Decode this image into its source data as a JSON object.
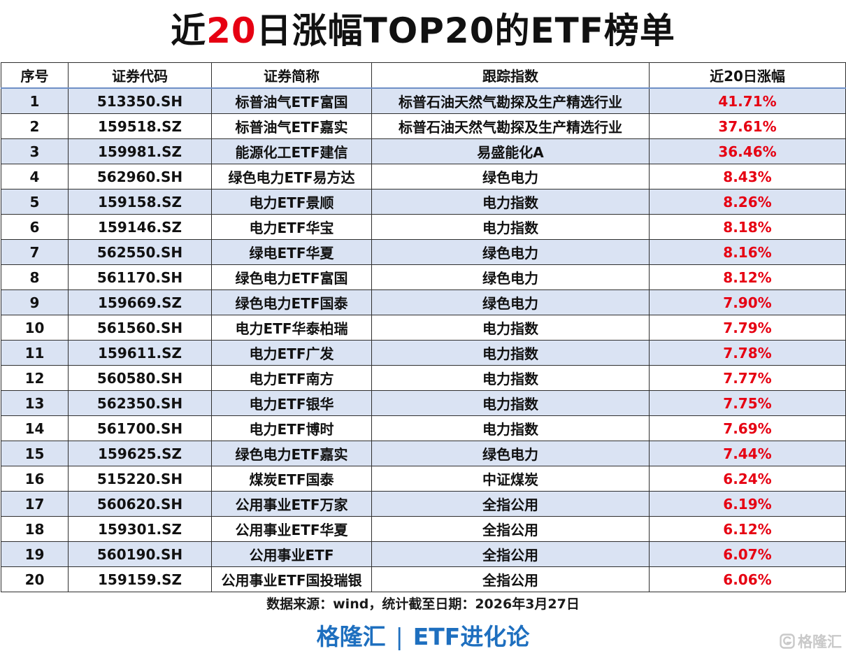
{
  "title": {
    "prefix": "近",
    "highlight": "20",
    "suffix": "日涨幅TOP20的ETF榜单"
  },
  "table": {
    "headers": [
      "序号",
      "证券代码",
      "证券简称",
      "跟踪指数",
      "近20日涨幅"
    ],
    "rows": [
      {
        "rank": "1",
        "code": "513350.SH",
        "name": "标普油气ETF富国",
        "index": "标普石油天然气勘探及生产精选行业",
        "change": "41.71%"
      },
      {
        "rank": "2",
        "code": "159518.SZ",
        "name": "标普油气ETF嘉实",
        "index": "标普石油天然气勘探及生产精选行业",
        "change": "37.61%"
      },
      {
        "rank": "3",
        "code": "159981.SZ",
        "name": "能源化工ETF建信",
        "index": "易盛能化A",
        "change": "36.46%"
      },
      {
        "rank": "4",
        "code": "562960.SH",
        "name": "绿色电力ETF易方达",
        "index": "绿色电力",
        "change": "8.43%"
      },
      {
        "rank": "5",
        "code": "159158.SZ",
        "name": "电力ETF景顺",
        "index": "电力指数",
        "change": "8.26%"
      },
      {
        "rank": "6",
        "code": "159146.SZ",
        "name": "电力ETF华宝",
        "index": "电力指数",
        "change": "8.18%"
      },
      {
        "rank": "7",
        "code": "562550.SH",
        "name": "绿电ETF华夏",
        "index": "绿色电力",
        "change": "8.16%"
      },
      {
        "rank": "8",
        "code": "561170.SH",
        "name": "绿色电力ETF富国",
        "index": "绿色电力",
        "change": "8.12%"
      },
      {
        "rank": "9",
        "code": "159669.SZ",
        "name": "绿色电力ETF国泰",
        "index": "绿色电力",
        "change": "7.90%"
      },
      {
        "rank": "10",
        "code": "561560.SH",
        "name": "电力ETF华泰柏瑞",
        "index": "电力指数",
        "change": "7.79%"
      },
      {
        "rank": "11",
        "code": "159611.SZ",
        "name": "电力ETF广发",
        "index": "电力指数",
        "change": "7.78%"
      },
      {
        "rank": "12",
        "code": "560580.SH",
        "name": "电力ETF南方",
        "index": "电力指数",
        "change": "7.77%"
      },
      {
        "rank": "13",
        "code": "562350.SH",
        "name": "电力ETF银华",
        "index": "电力指数",
        "change": "7.75%"
      },
      {
        "rank": "14",
        "code": "561700.SH",
        "name": "电力ETF博时",
        "index": "电力指数",
        "change": "7.69%"
      },
      {
        "rank": "15",
        "code": "159625.SZ",
        "name": "绿色电力ETF嘉实",
        "index": "绿色电力",
        "change": "7.44%"
      },
      {
        "rank": "16",
        "code": "515220.SH",
        "name": "煤炭ETF国泰",
        "index": "中证煤炭",
        "change": "6.24%"
      },
      {
        "rank": "17",
        "code": "560620.SH",
        "name": "公用事业ETF万家",
        "index": "全指公用",
        "change": "6.19%"
      },
      {
        "rank": "18",
        "code": "159301.SZ",
        "name": "公用事业ETF华夏",
        "index": "全指公用",
        "change": "6.12%"
      },
      {
        "rank": "19",
        "code": "560190.SH",
        "name": "公用事业ETF",
        "index": "全指公用",
        "change": "6.07%"
      },
      {
        "rank": "20",
        "code": "159159.SZ",
        "name": "公用事业ETF国投瑞银",
        "index": "全指公用",
        "change": "6.06%"
      }
    ]
  },
  "source": "数据来源：wind，统计截至日期：2026年3月27日",
  "footer": {
    "brand": "格隆汇",
    "separator": "|",
    "column": "ETF进化论"
  },
  "watermark": {
    "text": "格隆汇",
    "icon": "gelonghui-logo-icon"
  },
  "colors": {
    "highlight_red": "#e60012",
    "row_band_blue": "#dae3f3",
    "footer_blue": "#1e6fbf"
  }
}
